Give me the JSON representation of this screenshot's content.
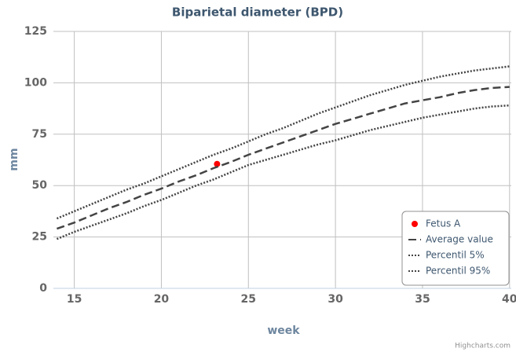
{
  "chart_data": {
    "type": "line",
    "title": "Biparietal diameter (BPD)",
    "xlabel": "week",
    "ylabel": "mm",
    "xlim": [
      13.8,
      40.1
    ],
    "xticks": [
      15,
      20,
      25,
      30,
      35,
      40
    ],
    "ylim": [
      0,
      125
    ],
    "yticks": [
      0,
      25,
      50,
      75,
      100,
      125
    ],
    "grid": true,
    "legend": "bottom-right",
    "credits": "Highcharts.com",
    "series": [
      {
        "name": "Fetus A",
        "type": "scatter",
        "color": "#ff0000",
        "x": [
          23.2
        ],
        "values": [
          60.5
        ]
      },
      {
        "name": "Average value",
        "color": "#444444",
        "dash": "dash",
        "x": [
          14,
          15,
          16,
          17,
          18,
          19,
          20,
          21,
          22,
          23,
          24,
          25,
          26,
          27,
          28,
          29,
          30,
          31,
          32,
          33,
          34,
          35,
          36,
          37,
          38,
          39,
          40
        ],
        "values": [
          29,
          32,
          35.5,
          39,
          42,
          45.5,
          48.5,
          52,
          55,
          58.5,
          61.5,
          65,
          68,
          71,
          74,
          77,
          80,
          82.5,
          85,
          87.5,
          90,
          91.5,
          93,
          95,
          96.5,
          97.5,
          98
        ]
      },
      {
        "name": "Percentil 5%",
        "color": "#444444",
        "dash": "dot",
        "x": [
          14,
          15,
          16,
          17,
          18,
          19,
          20,
          21,
          22,
          23,
          24,
          25,
          26,
          27,
          28,
          29,
          30,
          31,
          32,
          33,
          34,
          35,
          36,
          37,
          38,
          39,
          40
        ],
        "values": [
          24,
          27.5,
          30.5,
          33.5,
          36.5,
          40,
          43,
          46.5,
          50,
          53,
          56.5,
          60,
          62.5,
          65,
          67.5,
          70,
          72,
          74.5,
          77,
          79,
          81,
          83,
          84.5,
          86,
          87.5,
          88.5,
          89
        ]
      },
      {
        "name": "Percentil 95%",
        "color": "#444444",
        "dash": "dot",
        "x": [
          14,
          15,
          16,
          17,
          18,
          19,
          20,
          21,
          22,
          23,
          24,
          25,
          26,
          27,
          28,
          29,
          30,
          31,
          32,
          33,
          34,
          35,
          36,
          37,
          38,
          39,
          40
        ],
        "values": [
          34,
          37.5,
          41,
          44.5,
          48,
          51,
          54.5,
          58,
          61.5,
          65,
          68,
          71.5,
          75,
          78,
          81.5,
          85,
          88,
          91,
          94,
          96.5,
          99,
          101,
          103,
          104.5,
          106,
          107,
          108
        ]
      }
    ]
  }
}
